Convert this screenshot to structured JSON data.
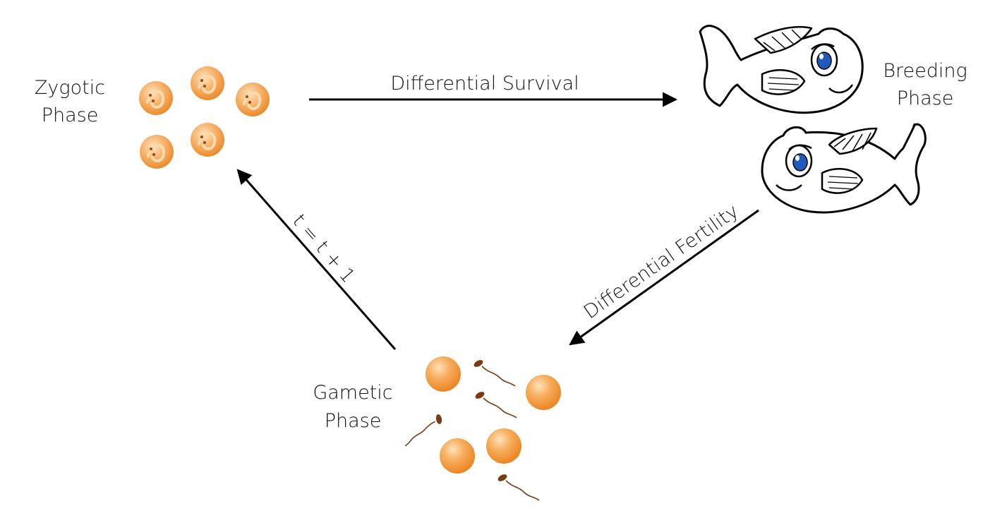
{
  "phases": {
    "zygotic": {
      "line1": "Zygotic",
      "line2": "Phase"
    },
    "breeding": {
      "line1": "Breeding",
      "line2": "Phase"
    },
    "gametic": {
      "line1": "Gametic",
      "line2": "Phase"
    }
  },
  "transitions": {
    "survival": "Differential Survival",
    "fertility": "Differential Fertility",
    "time_step": "t = t + 1"
  },
  "colors": {
    "egg_light": "#fbd7a4",
    "egg_mid": "#f6a04a",
    "egg_dark": "#e9821f",
    "fish_eye": "#1f5bbf",
    "sperm": "#7a3a12",
    "arrow": "#000000"
  },
  "icons": {
    "zygote": "zygote-egg-icon",
    "fish": "fish-icon",
    "egg": "egg-cell-icon",
    "sperm": "sperm-cell-icon"
  }
}
